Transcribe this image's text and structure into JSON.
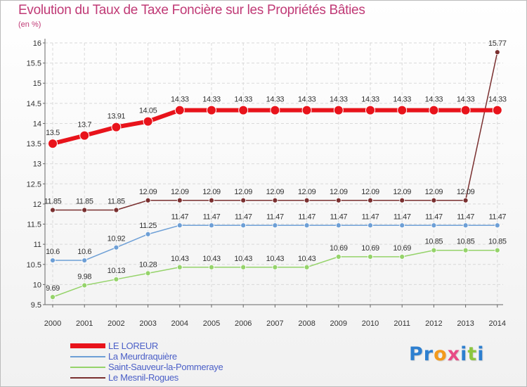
{
  "header": {
    "title": "Evolution du Taux de Taxe Foncière sur les Propriétés Bâties",
    "unit": "(en %)"
  },
  "logo": {
    "text": "Proxiti",
    "letters": [
      "P",
      "r",
      "o",
      "x",
      "i",
      "t",
      "i"
    ],
    "colors": [
      "#2d7fd0",
      "#2d7fd0",
      "#f39a1c",
      "#e84b86",
      "#2d7fd0",
      "#8cc63f",
      "#2d7fd0"
    ]
  },
  "chart_data": {
    "type": "line",
    "title": "Evolution du Taux de Taxe Foncière sur les Propriétés Bâties",
    "ylabel": "(en %)",
    "xlabel": "",
    "ylim": [
      9.5,
      16
    ],
    "yticks": [
      "9.5",
      "10",
      "10.5",
      "11",
      "11.5",
      "12",
      "12.5",
      "13",
      "13.5",
      "14",
      "14.5",
      "15",
      "15.5",
      "16"
    ],
    "categories": [
      "2000",
      "2001",
      "2002",
      "2003",
      "2004",
      "2005",
      "2006",
      "2007",
      "2008",
      "2009",
      "2010",
      "2011",
      "2012",
      "2013",
      "2014"
    ],
    "grid": true,
    "series": [
      {
        "name": "LE LOREUR",
        "color": "#e8131b",
        "values": [
          13.5,
          13.7,
          13.91,
          14.05,
          14.33,
          14.33,
          14.33,
          14.33,
          14.33,
          14.33,
          14.33,
          14.33,
          14.33,
          14.33,
          14.33
        ],
        "labels": [
          "13.5",
          "13.7",
          "13.91",
          "14.05",
          "14.33",
          "14.33",
          "14.33",
          "14.33",
          "14.33",
          "14.33",
          "14.33",
          "14.33",
          "14.33",
          "14.33",
          "14.33"
        ]
      },
      {
        "name": "La Meurdraquière",
        "color": "#6d9fd6",
        "values": [
          10.6,
          10.6,
          10.92,
          11.25,
          11.47,
          11.47,
          11.47,
          11.47,
          11.47,
          11.47,
          11.47,
          11.47,
          11.47,
          11.47,
          11.47
        ],
        "labels": [
          "10.6",
          "10.6",
          "10.92",
          "11.25",
          "11.47",
          "11.47",
          "11.47",
          "11.47",
          "11.47",
          "11.47",
          "11.47",
          "11.47",
          "11.47",
          "11.47",
          "11.47"
        ]
      },
      {
        "name": "Saint-Sauveur-la-Pommeraye",
        "color": "#95d36a",
        "values": [
          9.69,
          9.98,
          10.13,
          10.28,
          10.43,
          10.43,
          10.43,
          10.43,
          10.43,
          10.69,
          10.69,
          10.69,
          10.85,
          10.85,
          10.85
        ],
        "labels": [
          "9.69",
          "9.98",
          "10.13",
          "10.28",
          "10.43",
          "10.43",
          "10.43",
          "10.43",
          "10.43",
          "10.69",
          "10.69",
          "10.69",
          "10.85",
          "10.85",
          "10.85"
        ]
      },
      {
        "name": "Le Mesnil-Rogues",
        "color": "#7a3030",
        "values": [
          11.85,
          11.85,
          11.85,
          12.09,
          12.09,
          12.09,
          12.09,
          12.09,
          12.09,
          12.09,
          12.09,
          12.09,
          12.09,
          12.09,
          15.77
        ],
        "labels": [
          "11.85",
          "11.85",
          "11.85",
          "12.09",
          "12.09",
          "12.09",
          "12.09",
          "12.09",
          "12.09",
          "12.09",
          "12.09",
          "12.09",
          "12.09",
          "12.09",
          "15.77"
        ]
      }
    ]
  }
}
